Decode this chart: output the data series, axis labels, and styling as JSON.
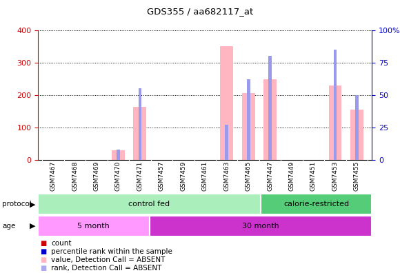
{
  "title": "GDS355 / aa682117_at",
  "samples": [
    "GSM7467",
    "GSM7468",
    "GSM7469",
    "GSM7470",
    "GSM7471",
    "GSM7457",
    "GSM7459",
    "GSM7461",
    "GSM7463",
    "GSM7465",
    "GSM7447",
    "GSM7449",
    "GSM7451",
    "GSM7453",
    "GSM7455"
  ],
  "values_absent": [
    0,
    0,
    0,
    30,
    162,
    0,
    0,
    0,
    350,
    205,
    248,
    0,
    0,
    228,
    155
  ],
  "rank_absent": [
    0,
    0,
    0,
    8,
    55,
    0,
    0,
    0,
    27,
    62,
    80,
    0,
    0,
    85,
    50
  ],
  "values_present": [
    0,
    0,
    0,
    0,
    0,
    0,
    0,
    0,
    0,
    0,
    0,
    0,
    0,
    0,
    0
  ],
  "rank_present": [
    0,
    0,
    0,
    0,
    0,
    0,
    0,
    0,
    0,
    0,
    0,
    0,
    0,
    0,
    0
  ],
  "ylim_left": [
    0,
    400
  ],
  "ylim_right": [
    0,
    100
  ],
  "yticks_left": [
    0,
    100,
    200,
    300,
    400
  ],
  "yticks_right": [
    0,
    25,
    50,
    75,
    100
  ],
  "ytick_labels_right": [
    "0",
    "25",
    "50",
    "75",
    "100%"
  ],
  "bar_width": 0.6,
  "rank_bar_width": 0.15,
  "absent_bar_color": "#FFB6C1",
  "absent_rank_color": "#9999EE",
  "present_bar_color": "#FF0000",
  "present_rank_color": "#0000CC",
  "legend_items": [
    {
      "label": "count",
      "color": "#CC0000"
    },
    {
      "label": "percentile rank within the sample",
      "color": "#0000CC"
    },
    {
      "label": "value, Detection Call = ABSENT",
      "color": "#FFB6C1"
    },
    {
      "label": "rank, Detection Call = ABSENT",
      "color": "#AAAAEE"
    }
  ],
  "left_axis_color": "#CC0000",
  "right_axis_color": "#0000CC",
  "plot_bg": "#FFFFFF",
  "xtick_area_color": "#D3D3D3",
  "protocol_cf_color": "#AAEEBB",
  "protocol_cr_color": "#55CC77",
  "age_5m_color": "#FF99FF",
  "age_30m_color": "#CC33CC"
}
